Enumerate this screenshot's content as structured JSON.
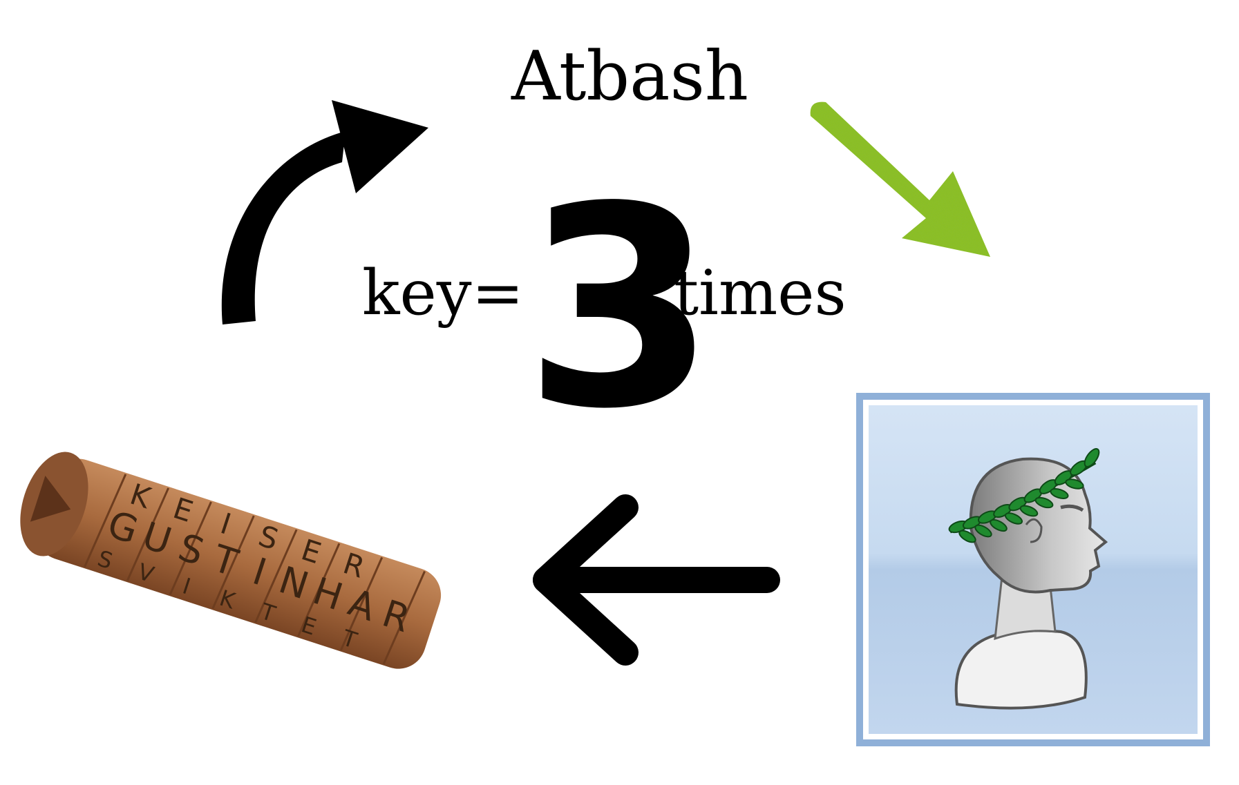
{
  "diagram": {
    "title": "Atbash",
    "key_prefix": "key=",
    "key_value": "3",
    "key_suffix": "times",
    "colors": {
      "arrow_black": "#000000",
      "arrow_green": "#8cc21f",
      "panel_border": "#8fb0d8",
      "panel_top": "#cfe0f3",
      "panel_bottom": "#b5cde9",
      "laurel": "#1f8a2e",
      "scytale": "#a86a3e"
    },
    "icons": {
      "top_left_arrow": "curved-arrow-up-right-icon",
      "top_right_arrow": "green-arrow-down-right-icon",
      "bottom_arrow": "arrow-left-icon",
      "caesar_panel": "caesar-bust-icon",
      "scytale": "scytale-cipher-icon"
    },
    "scytale_letters": [
      "K",
      "E",
      "I",
      "S",
      "E",
      "R",
      "G",
      "U",
      "S",
      "T",
      "I",
      "N",
      "H",
      "A",
      "R",
      "S",
      "V",
      "I",
      "K",
      "T",
      "E",
      "T"
    ]
  }
}
